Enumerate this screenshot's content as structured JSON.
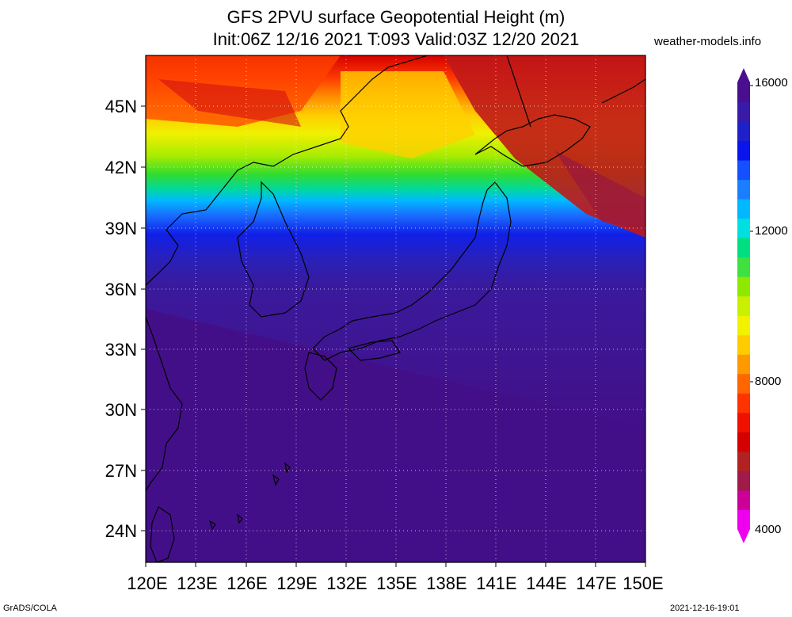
{
  "title_line1": "GFS 2PVU surface Geopotential Height (m)",
  "title_line2": "Init:06Z 12/16 2021 T:093 Valid:03Z 12/20 2021",
  "site": "weather-models.info",
  "footer_left": "GrADS/COLA",
  "footer_right": "2021-12-16-19:01",
  "map": {
    "lat_labels": [
      "45N",
      "42N",
      "39N",
      "36N",
      "33N",
      "30N",
      "27N",
      "24N"
    ],
    "lon_labels": [
      "120E",
      "123E",
      "126E",
      "129E",
      "132E",
      "135E",
      "138E",
      "141E",
      "144E",
      "147E",
      "150E"
    ]
  },
  "colorbar": {
    "labels": [
      "16000",
      "12000",
      "8000",
      "4000"
    ],
    "colors": [
      "#ee00ee",
      "#cc0099",
      "#a01a4a",
      "#b22222",
      "#d40000",
      "#f01000",
      "#ff3300",
      "#ff6600",
      "#ff9900",
      "#ffcc00",
      "#f2f200",
      "#c8f000",
      "#8fe800",
      "#40e040",
      "#00e080",
      "#00e0e0",
      "#00b8ff",
      "#1a7fff",
      "#1450ff",
      "#0a14ee",
      "#2020c8",
      "#3a1aa8",
      "#4a0f8f"
    ]
  }
}
